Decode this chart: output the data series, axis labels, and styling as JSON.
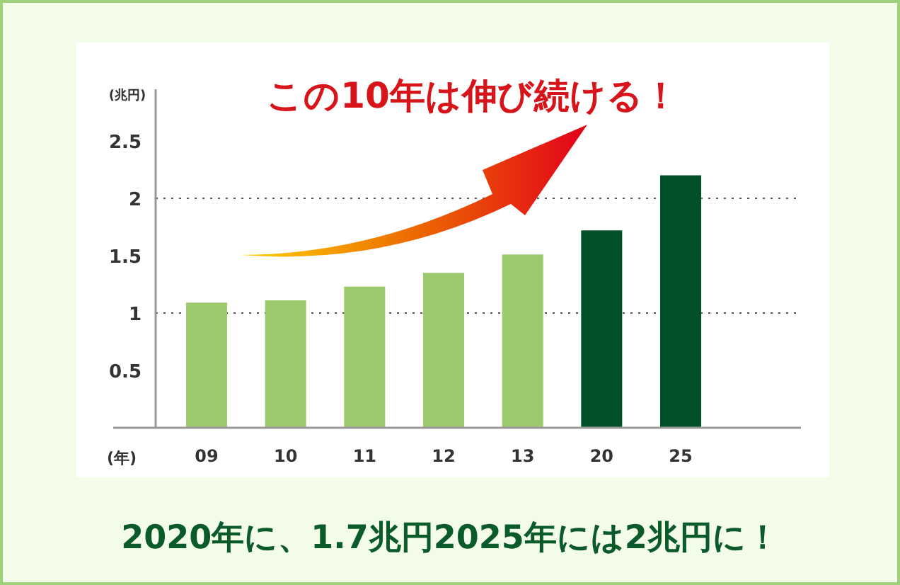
{
  "chart_data": {
    "type": "bar",
    "title": "この10年は伸び続ける！",
    "xlabel": "(年)",
    "ylabel": "(兆円)",
    "categories": [
      "09",
      "10",
      "11",
      "12",
      "13",
      "20",
      "25"
    ],
    "values": [
      1.09,
      1.11,
      1.23,
      1.35,
      1.51,
      1.72,
      2.2
    ],
    "colors": [
      "#9bc96b",
      "#9bc96b",
      "#9bc96b",
      "#9bc96b",
      "#9bc96b",
      "#00512a",
      "#00512a"
    ],
    "ylim": [
      0,
      2.95
    ],
    "yticks": [
      0.5,
      1,
      1.5,
      2,
      2.5
    ],
    "ref_lines": [
      {
        "axis": "y",
        "value": 1,
        "line_style": "dotted",
        "color": "#555555"
      },
      {
        "axis": "y",
        "value": 2,
        "line_style": "dotted",
        "color": "#555555"
      }
    ],
    "annotations": [
      "2020年に、1.7兆円2025年には2兆円に！"
    ]
  }
}
